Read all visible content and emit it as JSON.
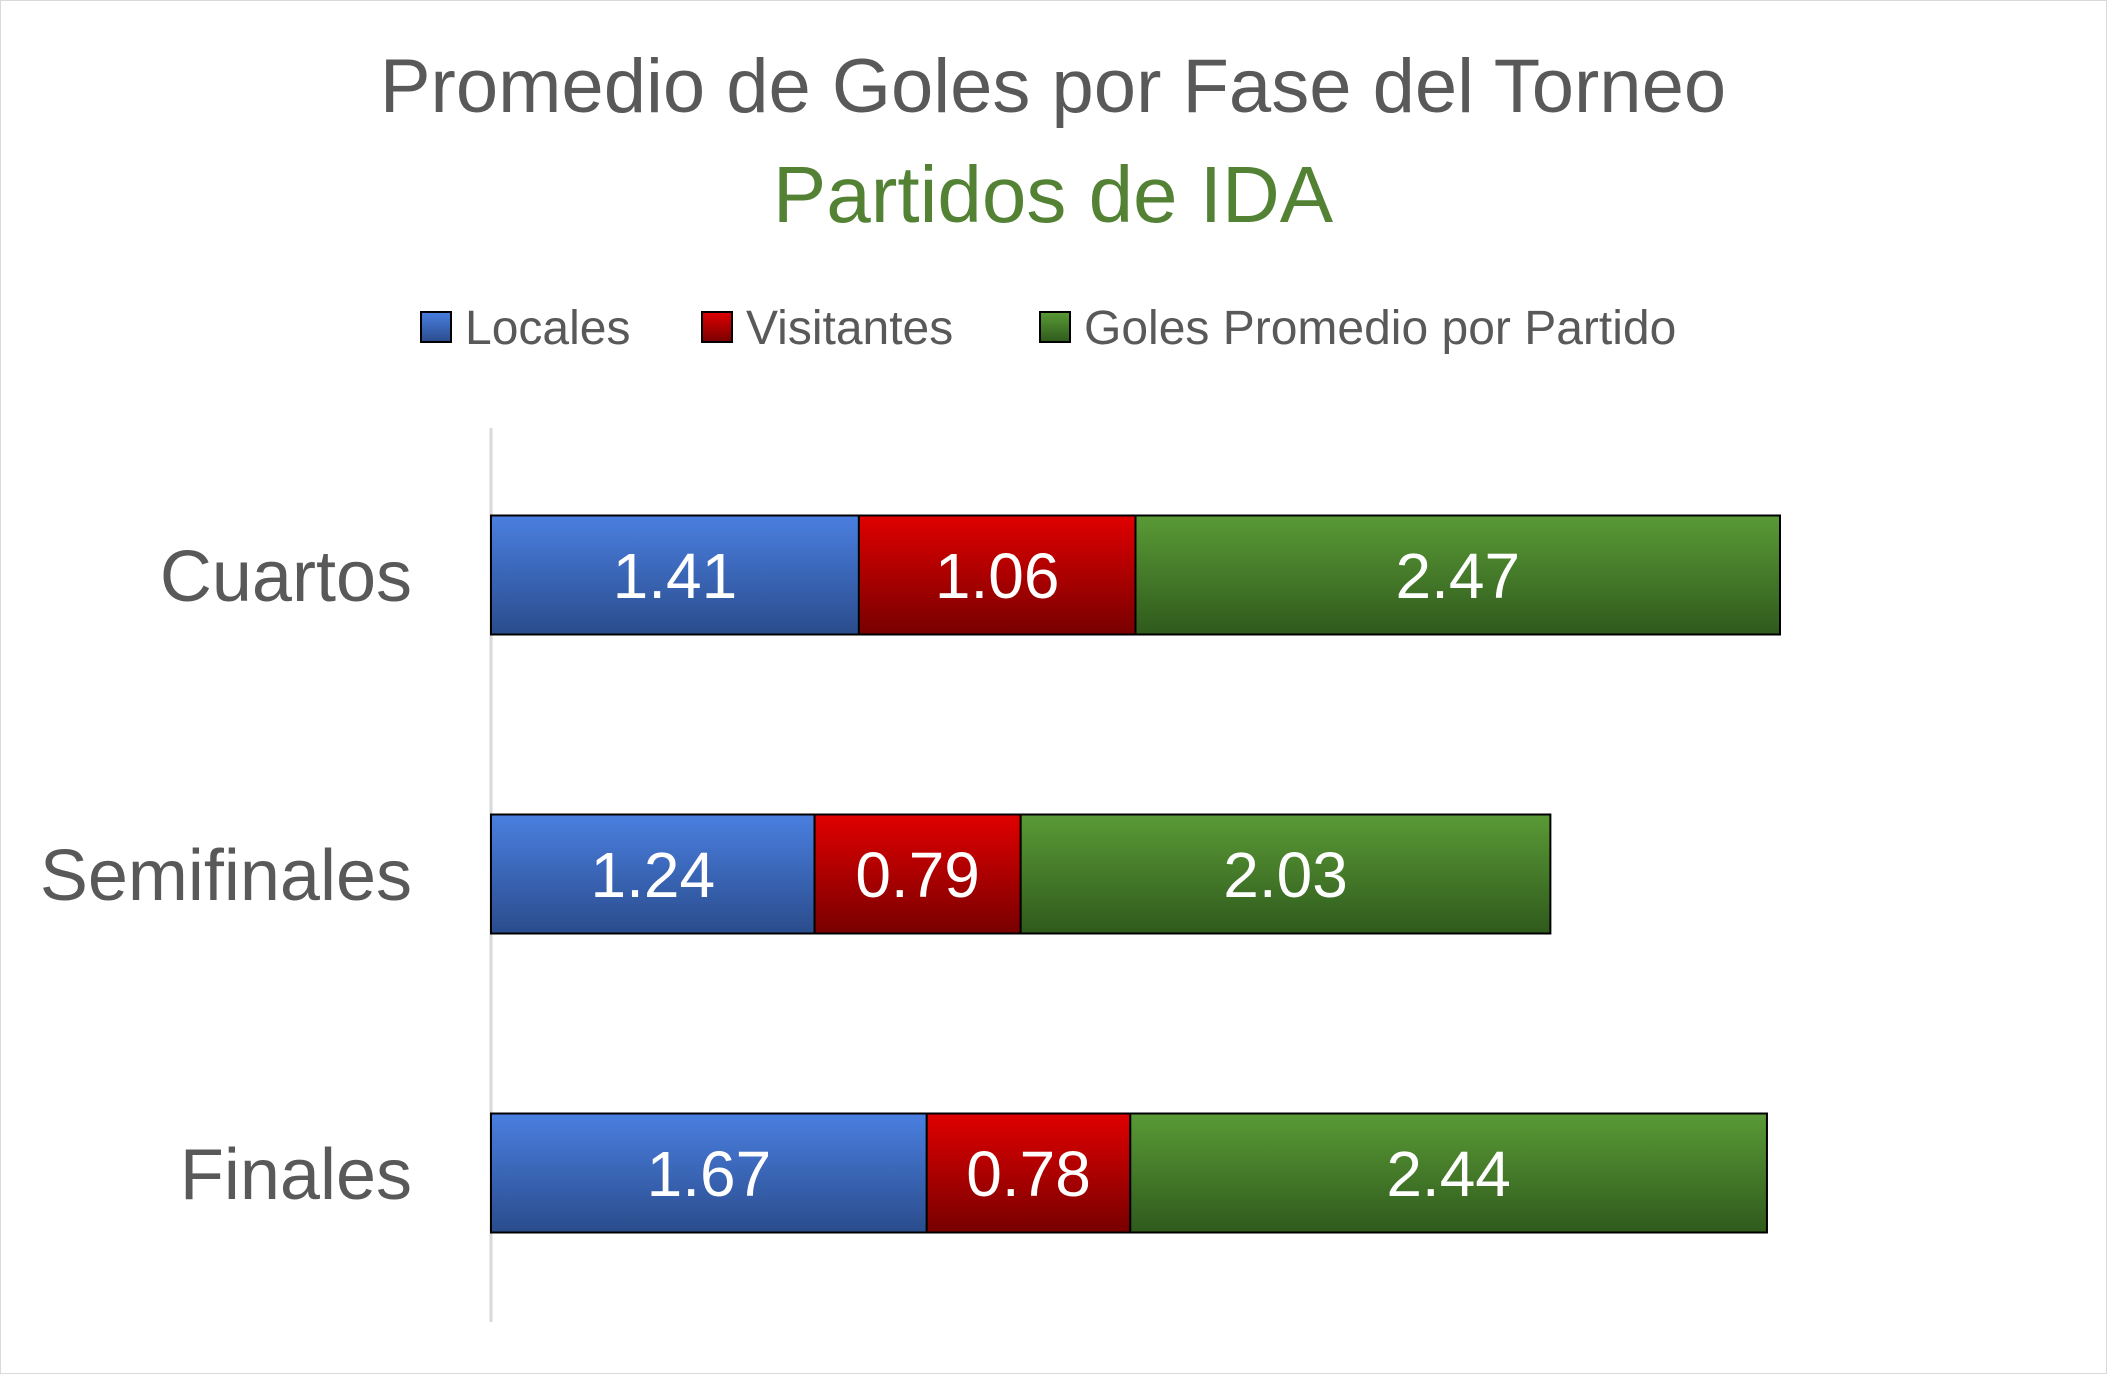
{
  "chart_data": {
    "type": "bar",
    "orientation": "horizontal",
    "stacked": true,
    "title": "Promedio de Goles por Fase del Torneo",
    "subtitle": "Partidos de IDA",
    "categories": [
      "Cuartos",
      "Semifinales",
      "Finales"
    ],
    "series": [
      {
        "name": "Locales",
        "values": [
          1.41,
          1.24,
          1.67
        ],
        "color": "#4472c4"
      },
      {
        "name": "Visitantes",
        "values": [
          1.06,
          0.79,
          0.78
        ],
        "color": "#c00000"
      },
      {
        "name": "Goles Promedio por Partido",
        "values": [
          2.47,
          2.03,
          2.44
        ],
        "color": "#548235"
      }
    ],
    "xlim": [
      0,
      5.2
    ],
    "grid": false,
    "legend_position": "top",
    "data_labels": true
  }
}
